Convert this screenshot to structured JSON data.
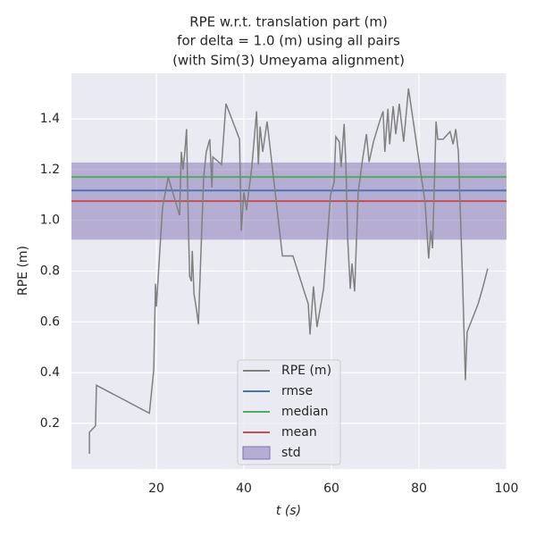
{
  "chart_data": {
    "type": "line",
    "title": [
      "RPE w.r.t. translation part (m)",
      "for delta = 1.0 (m) using all pairs",
      "(with Sim(3) Umeyama alignment)"
    ],
    "x_label": "t (s)",
    "y_label": "RPE (m)",
    "xlim": [
      0.6,
      100
    ],
    "ylim": [
      0.02,
      1.58
    ],
    "xticks": [
      20,
      40,
      60,
      80,
      100
    ],
    "yticks": [
      0.2,
      0.4,
      0.6,
      0.8,
      {
        "value": 1,
        "label": "1.0"
      },
      1.2,
      1.4
    ],
    "grid": true,
    "legend": "lower center",
    "series": [
      {
        "name": "RPE (m)",
        "color": "#808080",
        "x": [
          4.7,
          4.7,
          6.1,
          6.3,
          18.4,
          19.4,
          19.8,
          20.0,
          21.4,
          22.7,
          25.3,
          25.7,
          26.1,
          26.5,
          26.9,
          27.3,
          27.6,
          28.0,
          28.2,
          28.6,
          29.2,
          29.6,
          30.8,
          31.4,
          32.2,
          32.7,
          32.9,
          34.9,
          35.9,
          39.0,
          39.4,
          40.0,
          40.6,
          41.0,
          41.8,
          42.9,
          43.3,
          43.7,
          44.3,
          45.3,
          48.8,
          51.2,
          54.7,
          55.1,
          55.9,
          56.7,
          58.2,
          59.8,
          60.6,
          61.0,
          61.8,
          62.2,
          62.9,
          63.3,
          63.7,
          64.3,
          64.7,
          65.3,
          66.1,
          67.1,
          68.0,
          68.6,
          69.6,
          71.0,
          71.8,
          72.2,
          72.9,
          73.3,
          74.1,
          74.7,
          75.5,
          76.5,
          77.6,
          81.4,
          82.2,
          82.7,
          83.1,
          83.9,
          84.3,
          85.5,
          87.1,
          87.8,
          88.4,
          89.0,
          90.0,
          90.6,
          91.0,
          93.5,
          94.5,
          95.7
        ],
        "values": [
          0.08,
          0.165,
          0.19,
          0.35,
          0.24,
          0.41,
          0.75,
          0.66,
          1.05,
          1.17,
          1.02,
          1.27,
          1.2,
          1.27,
          1.36,
          0.99,
          0.78,
          0.76,
          0.88,
          0.71,
          0.645,
          0.59,
          1.17,
          1.27,
          1.32,
          1.13,
          1.25,
          1.22,
          1.46,
          1.32,
          0.96,
          1.11,
          1.04,
          1.1,
          1.21,
          1.43,
          1.22,
          1.37,
          1.27,
          1.39,
          0.86,
          0.86,
          0.67,
          0.55,
          0.74,
          0.58,
          0.73,
          1.1,
          1.15,
          1.33,
          1.31,
          1.21,
          1.38,
          1.22,
          0.93,
          0.73,
          0.83,
          0.72,
          1.11,
          1.24,
          1.34,
          1.23,
          1.31,
          1.39,
          1.43,
          1.27,
          1.44,
          1.3,
          1.45,
          1.34,
          1.46,
          1.31,
          1.52,
          1.07,
          0.85,
          0.96,
          0.89,
          1.39,
          1.32,
          1.32,
          1.35,
          1.3,
          1.36,
          1.27,
          0.74,
          0.37,
          0.56,
          0.67,
          0.73,
          0.81
        ]
      }
    ],
    "stats": [
      {
        "name": "rmse",
        "value": 1.118,
        "color": "#4c72b0"
      },
      {
        "name": "median",
        "value": 1.171,
        "color": "#55a868"
      },
      {
        "name": "mean",
        "value": 1.076,
        "color": "#c44e52"
      }
    ],
    "std_band": {
      "name": "std",
      "value": 0.152,
      "color": "#8172b2"
    }
  }
}
